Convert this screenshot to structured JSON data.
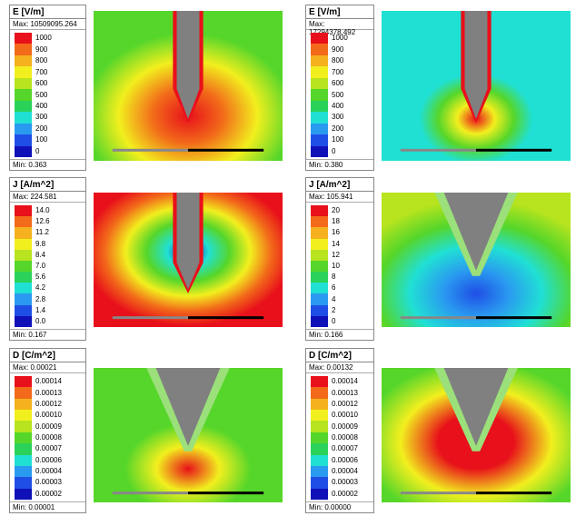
{
  "panels": [
    {
      "title": "E [V/m]",
      "max": "Max: 10509095.264",
      "labels": [
        "1000",
        "900",
        "800",
        "700",
        "600",
        "500",
        "400",
        "300",
        "200",
        "100",
        "0"
      ],
      "min": "Min:  0.363"
    },
    {
      "title": "E [V/m]",
      "max": "Max: 17294378.492",
      "labels": [
        "1000",
        "900",
        "800",
        "700",
        "600",
        "500",
        "400",
        "300",
        "200",
        "100",
        "0"
      ],
      "min": "Min:  0.380"
    },
    {
      "title": "J [A/m^2]",
      "max": "Max: 224.581",
      "labels": [
        "14.0",
        "12.6",
        "11.2",
        "9.8",
        "8.4",
        "7.0",
        "5.6",
        "4.2",
        "2.8",
        "1.4",
        "0.0"
      ],
      "min": "Min:  0.167"
    },
    {
      "title": "J [A/m^2]",
      "max": "Max: 105.941",
      "labels": [
        "20",
        "18",
        "16",
        "14",
        "12",
        "10",
        "8",
        "6",
        "4",
        "2",
        "0"
      ],
      "min": "Min:  0.166"
    },
    {
      "title": "D [C/m^2]",
      "max": "Max: 0.00021",
      "labels": [
        "0.00014",
        "0.00013",
        "0.00012",
        "0.00010",
        "0.00009",
        "0.00008",
        "0.00007",
        "0.00006",
        "0.00004",
        "0.00003",
        "0.00002"
      ],
      "min": "Min:  0.00001"
    },
    {
      "title": "D [C/m^2]",
      "max": "Max: 0.00132",
      "labels": [
        "0.00014",
        "0.00013",
        "0.00012",
        "0.00010",
        "0.00009",
        "0.00008",
        "0.00007",
        "0.00006",
        "0.00004",
        "0.00003",
        "0.00002"
      ],
      "min": "Min:  0.00000"
    }
  ]
}
